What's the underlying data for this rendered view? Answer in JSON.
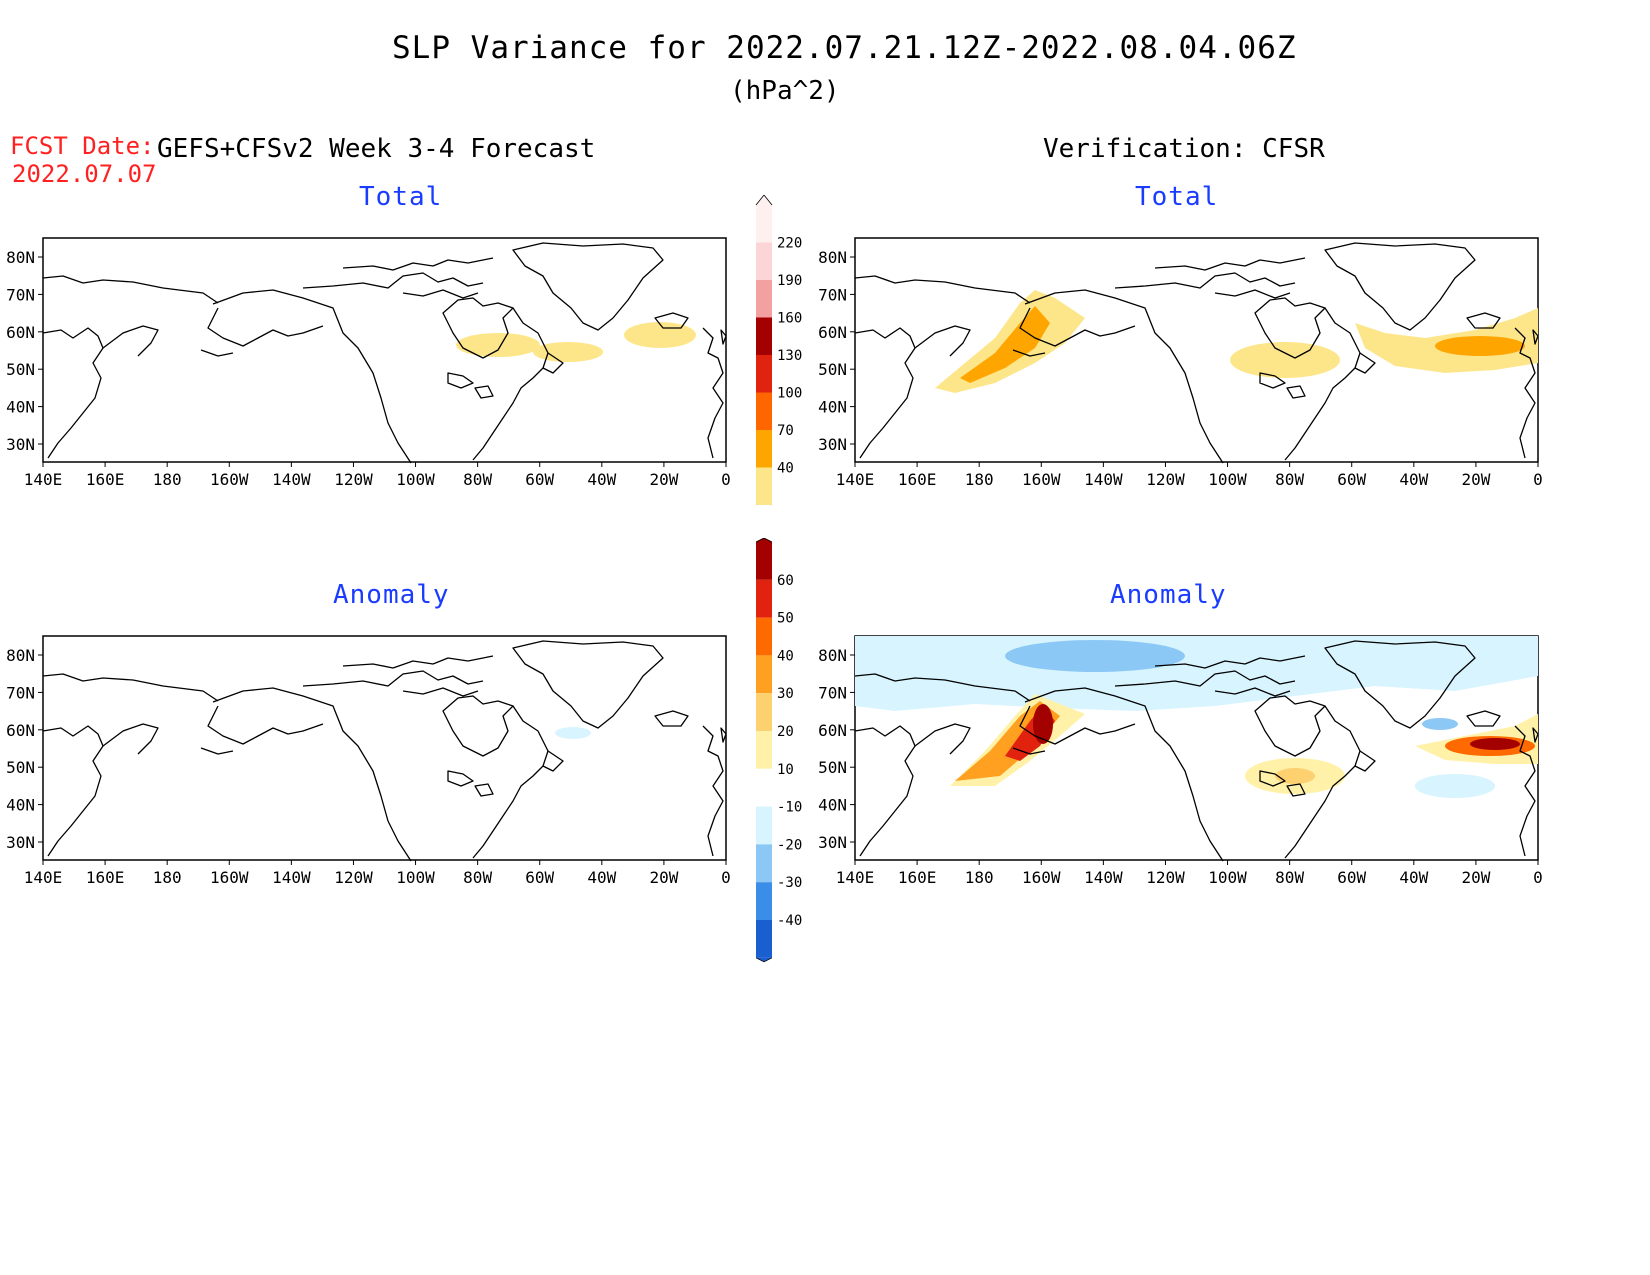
{
  "header": {
    "title": "SLP Variance for 2022.07.21.12Z-2022.08.04.06Z",
    "units": "(hPa^2)",
    "fcst_date_label": "FCST Date:",
    "fcst_date_value": "2022.07.07",
    "forecast_label": "GEFS+CFSv2 Week 3-4 Forecast",
    "verification_label": "Verification: CFSR"
  },
  "panels": {
    "top_left": {
      "title": "Total"
    },
    "top_right": {
      "title": "Total"
    },
    "bottom_left": {
      "title": "Anomaly"
    },
    "bottom_right": {
      "title": "Anomaly"
    }
  },
  "axes": {
    "lat_labels": [
      "80N",
      "70N",
      "60N",
      "50N",
      "40N",
      "30N"
    ],
    "lon_labels": [
      "140E",
      "160E",
      "180",
      "160W",
      "140W",
      "120W",
      "100W",
      "80W",
      "60W",
      "40W",
      "20W",
      "0"
    ]
  },
  "colorbars": {
    "total": {
      "labels": [
        "40",
        "70",
        "100",
        "130",
        "160",
        "190",
        "220"
      ],
      "colors": [
        "#fde68a",
        "#ffa500",
        "#ff6600",
        "#e0230e",
        "#a30000",
        "#f2a0a0",
        "#fcd6d6",
        "#fff0f0"
      ]
    },
    "anomaly": {
      "labels": [
        "-40",
        "-30",
        "-20",
        "-10",
        "10",
        "20",
        "30",
        "40",
        "50",
        "60"
      ],
      "colors": [
        "#1a5fd0",
        "#3a8ee8",
        "#8cc8f5",
        "#d8f4ff",
        "#ffffff",
        "#fff2a8",
        "#fdd070",
        "#ffa020",
        "#ff6a00",
        "#e0220e",
        "#a30000"
      ]
    }
  }
}
